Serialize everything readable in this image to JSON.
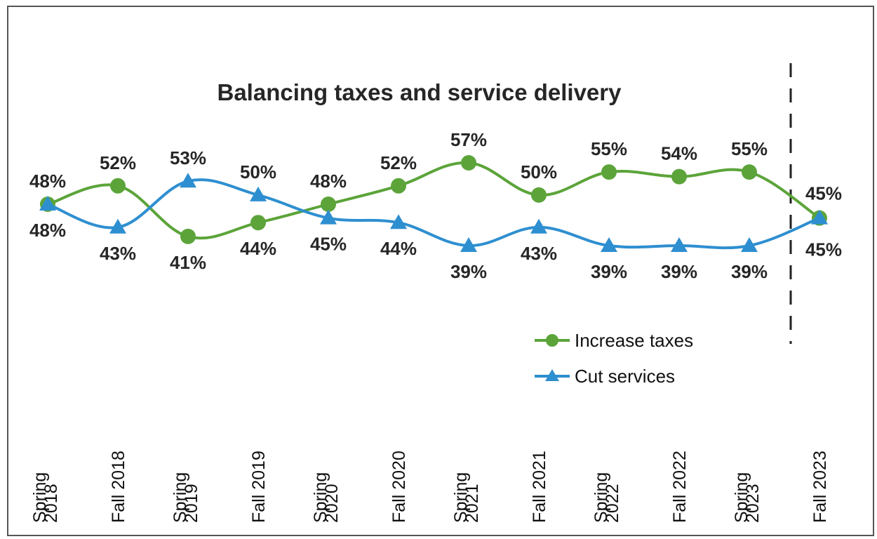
{
  "chart_data": {
    "type": "line",
    "title": "Balancing taxes and service delivery",
    "categories": [
      [
        "Spring",
        "2018"
      ],
      [
        "Fall 2018"
      ],
      [
        "Spring",
        "2019"
      ],
      [
        "Fall 2019"
      ],
      [
        "Spring",
        "2020"
      ],
      [
        "Fall 2020"
      ],
      [
        "Spring",
        "2021"
      ],
      [
        "Fall 2021"
      ],
      [
        "Spring",
        "2022"
      ],
      [
        "Fall 2022"
      ],
      [
        "Spring",
        "2023"
      ],
      [
        "Fall 2023"
      ]
    ],
    "series": [
      {
        "name": "Increase taxes",
        "color": "#5ca43a",
        "marker": "circle",
        "values": [
          48,
          52,
          41,
          44,
          48,
          52,
          57,
          50,
          55,
          54,
          55,
          45
        ],
        "labels": [
          "48%",
          "52%",
          "41%",
          "44%",
          "48%",
          "52%",
          "57%",
          "50%",
          "55%",
          "54%",
          "55%",
          "45%"
        ]
      },
      {
        "name": "Cut services",
        "color": "#2e8fd0",
        "marker": "triangle",
        "values": [
          48,
          43,
          53,
          50,
          45,
          44,
          39,
          43,
          39,
          39,
          39,
          45
        ],
        "labels": [
          "48%",
          "43%",
          "53%",
          "50%",
          "45%",
          "44%",
          "39%",
          "43%",
          "39%",
          "39%",
          "39%",
          "45%"
        ]
      }
    ],
    "ylim": [
      30,
      65
    ],
    "xlabel": "",
    "ylabel": "",
    "legend": "bottom-right",
    "grid": false,
    "divider_before_last": true
  }
}
